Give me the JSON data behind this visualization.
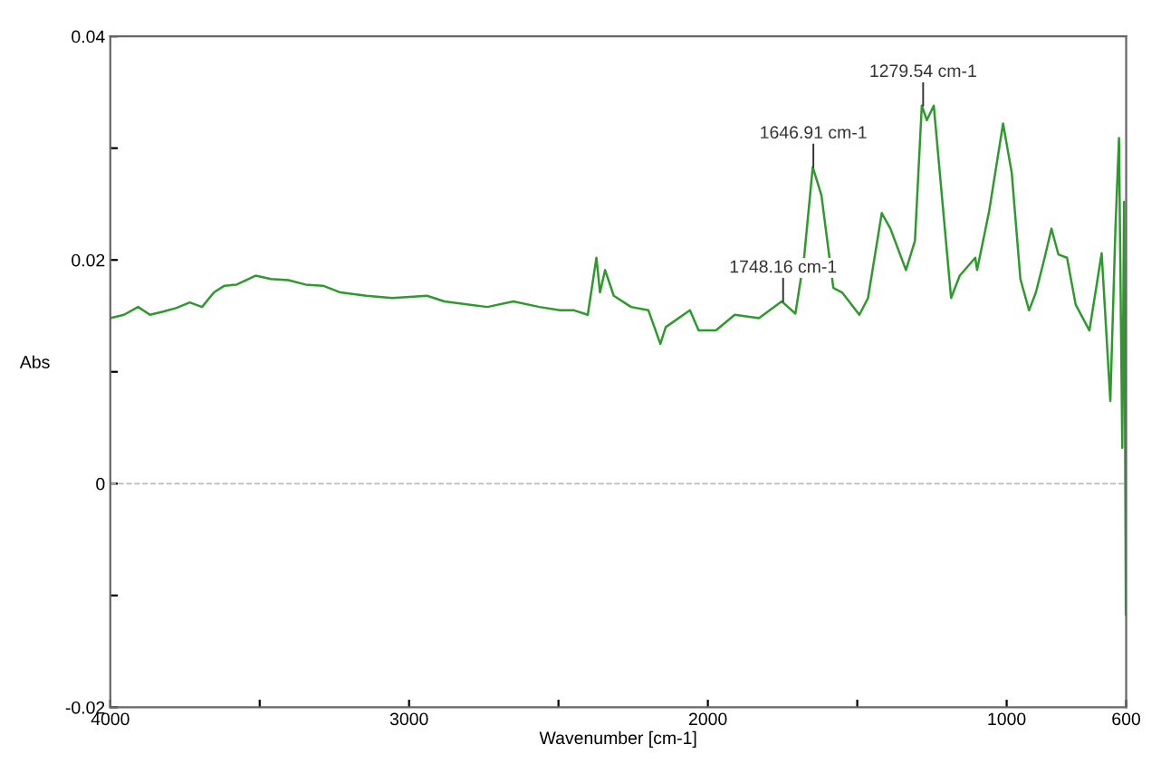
{
  "chart_data": {
    "type": "line",
    "xlabel": "Wavenumber [cm-1]",
    "ylabel": "Abs",
    "x": [
      4000,
      3954,
      3907,
      3867,
      3820,
      3780,
      3734,
      3693,
      3653,
      3618,
      3577,
      3514,
      3462,
      3404,
      3346,
      3288,
      3230,
      3143,
      3056,
      2940,
      2882,
      2796,
      2738,
      2651,
      2564,
      2495,
      2448,
      2402,
      2373,
      2361,
      2344,
      2315,
      2257,
      2199,
      2159,
      2141,
      2060,
      2031,
      1973,
      1910,
      1829,
      1753,
      1707,
      1678,
      1649,
      1620,
      1580,
      1551,
      1493,
      1464,
      1418,
      1389,
      1337,
      1307,
      1284,
      1267,
      1244,
      1186,
      1157,
      1105,
      1099,
      1059,
      1012,
      983,
      954,
      925,
      902,
      873,
      850,
      827,
      798,
      769,
      723,
      682,
      653,
      636,
      624,
      613,
      607,
      601
    ],
    "series": [
      {
        "color": "#2e9a2e",
        "values": [
          0.0148,
          0.0151,
          0.0158,
          0.0151,
          0.0154,
          0.0157,
          0.0162,
          0.0158,
          0.0171,
          0.0177,
          0.0178,
          0.0186,
          0.0183,
          0.0182,
          0.0178,
          0.0177,
          0.0171,
          0.0168,
          0.0166,
          0.0168,
          0.0163,
          0.016,
          0.0158,
          0.0163,
          0.0158,
          0.0155,
          0.0155,
          0.0151,
          0.0202,
          0.0171,
          0.0191,
          0.0168,
          0.0158,
          0.0155,
          0.0125,
          0.014,
          0.0155,
          0.0137,
          0.0137,
          0.0151,
          0.0148,
          0.0163,
          0.0152,
          0.0202,
          0.0283,
          0.0258,
          0.0175,
          0.0171,
          0.0151,
          0.0166,
          0.0242,
          0.0228,
          0.0191,
          0.0217,
          0.0338,
          0.0325,
          0.0338,
          0.0166,
          0.0186,
          0.0202,
          0.0191,
          0.0243,
          0.0322,
          0.0278,
          0.0183,
          0.0155,
          0.0171,
          0.0202,
          0.0228,
          0.0205,
          0.0202,
          0.016,
          0.0137,
          0.0206,
          0.0074,
          0.0228,
          0.0309,
          0.0032,
          0.0252,
          -0.0117
        ]
      }
    ],
    "xlim": [
      4000,
      600
    ],
    "ylim": [
      -0.02,
      0.04
    ],
    "xticks": [
      4000,
      {
        "value": 3500,
        "label": null
      },
      3000,
      {
        "value": 2500,
        "label": null
      },
      2000,
      {
        "value": 1500,
        "label": null
      },
      1000,
      600
    ],
    "yticks": [
      -0.02,
      {
        "value": -0.01,
        "label": null
      },
      0,
      {
        "value": 0.01,
        "label": null
      },
      0.02,
      {
        "value": 0.03,
        "label": null
      },
      0.04
    ],
    "ref_lines": [
      {
        "axis": "y",
        "value": 0,
        "color": "#bbbbbb",
        "line_style": "dashed"
      }
    ],
    "annotations": [
      {
        "text": "1279.54 cm-1",
        "x": 1279.54,
        "y": 0.0338
      },
      {
        "text": "1646.91 cm-1",
        "x": 1646.91,
        "y": 0.0283
      },
      {
        "text": "1748.16 cm-1",
        "x": 1748.16,
        "y": 0.0163
      }
    ],
    "grid": false,
    "legend": false
  }
}
